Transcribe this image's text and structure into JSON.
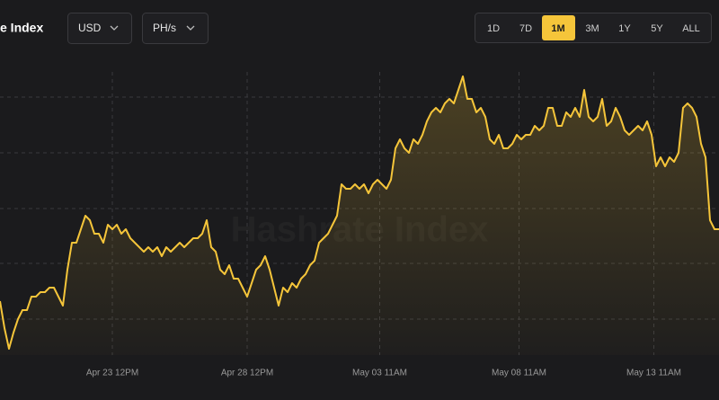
{
  "header": {
    "title": "e Index",
    "currency": "USD",
    "unit": "PH/s",
    "ranges": [
      "1D",
      "7D",
      "1M",
      "3M",
      "1Y",
      "5Y",
      "ALL"
    ],
    "active_range": "1M"
  },
  "chart_data": {
    "type": "line",
    "watermark": "Hashrate Index",
    "x": [
      0,
      4,
      8,
      12,
      16,
      20,
      24,
      28,
      32,
      36,
      40,
      44,
      48,
      52,
      56,
      60,
      64,
      68,
      72,
      76,
      80,
      84,
      88,
      92,
      96,
      100,
      104,
      108,
      112,
      116,
      120,
      124,
      128,
      132,
      136,
      140,
      144,
      148,
      152,
      156,
      160,
      164,
      168,
      172,
      176,
      180,
      184,
      188,
      192,
      196,
      200,
      204,
      208,
      212,
      216,
      220,
      224,
      228,
      232,
      236,
      240,
      244,
      248,
      252,
      256,
      260,
      264,
      268,
      272,
      276,
      280,
      284,
      288,
      292,
      296,
      300,
      304,
      308,
      312,
      316,
      320,
      324,
      328,
      332,
      336,
      340,
      344,
      348,
      352,
      356,
      360,
      364,
      368,
      372,
      376,
      380,
      384,
      388,
      392,
      396,
      400,
      404,
      408,
      412,
      416,
      420,
      424,
      428,
      432,
      436,
      440,
      444,
      448,
      452,
      456,
      460,
      464,
      468,
      472,
      476,
      480,
      484,
      488,
      492,
      496,
      500,
      504,
      508,
      512,
      516,
      520,
      524,
      528,
      532,
      536,
      540,
      544,
      548,
      552,
      556,
      560,
      564,
      568,
      572,
      576,
      580,
      584,
      588,
      592,
      596,
      600,
      604,
      608,
      612,
      616,
      620,
      624,
      628,
      632,
      636,
      640
    ],
    "series": [
      {
        "color": "#f5c53a",
        "values": [
          65,
          35,
          12,
          30,
          45,
          55,
          55,
          70,
          70,
          75,
          75,
          80,
          80,
          70,
          60,
          100,
          130,
          130,
          145,
          160,
          155,
          140,
          140,
          130,
          150,
          145,
          150,
          140,
          145,
          135,
          130,
          125,
          120,
          125,
          120,
          125,
          115,
          125,
          120,
          125,
          130,
          125,
          130,
          135,
          135,
          140,
          155,
          125,
          120,
          100,
          95,
          105,
          90,
          90,
          80,
          70,
          85,
          100,
          105,
          115,
          100,
          80,
          60,
          80,
          75,
          85,
          80,
          90,
          95,
          105,
          110,
          130,
          135,
          140,
          150,
          160,
          195,
          190,
          190,
          195,
          190,
          195,
          185,
          195,
          200,
          195,
          190,
          200,
          235,
          245,
          235,
          230,
          245,
          240,
          250,
          265,
          275,
          280,
          275,
          285,
          290,
          285,
          300,
          315,
          290,
          290,
          275,
          280,
          270,
          245,
          240,
          250,
          235,
          235,
          240,
          250,
          245,
          250,
          250,
          260,
          255,
          260,
          280,
          280,
          260,
          260,
          275,
          270,
          280,
          270,
          300,
          270,
          265,
          270,
          290,
          260,
          265,
          280,
          270,
          255,
          250,
          255,
          260,
          255,
          265,
          250,
          215,
          225,
          215,
          225,
          220,
          230,
          280,
          285,
          280,
          270,
          240,
          225,
          155,
          145,
          145
        ]
      }
    ],
    "xlim": [
      0,
      640
    ],
    "xticks": [
      {
        "value": 100,
        "label": "Apr 23 12PM"
      },
      {
        "value": 220,
        "label": "Apr 28 12PM"
      },
      {
        "value": 338,
        "label": "May 03 11AM"
      },
      {
        "value": 462,
        "label": "May 08 11AM"
      },
      {
        "value": 582,
        "label": "May 13 11AM"
      }
    ],
    "ylim": [
      5,
      360
    ],
    "yticks": [
      45,
      107,
      168,
      230,
      292
    ],
    "grid": true
  }
}
